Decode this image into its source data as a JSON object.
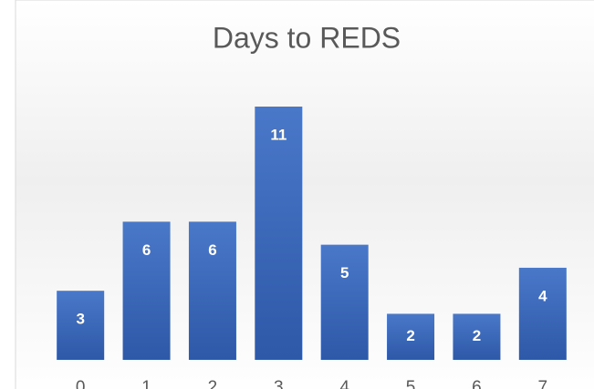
{
  "chart_data": {
    "type": "bar",
    "title": "Days to REDS",
    "categories": [
      "0",
      "1",
      "2",
      "3",
      "4",
      "5",
      "6",
      "7"
    ],
    "values": [
      3,
      6,
      6,
      11,
      5,
      2,
      2,
      4
    ],
    "color": "#4472c4"
  }
}
